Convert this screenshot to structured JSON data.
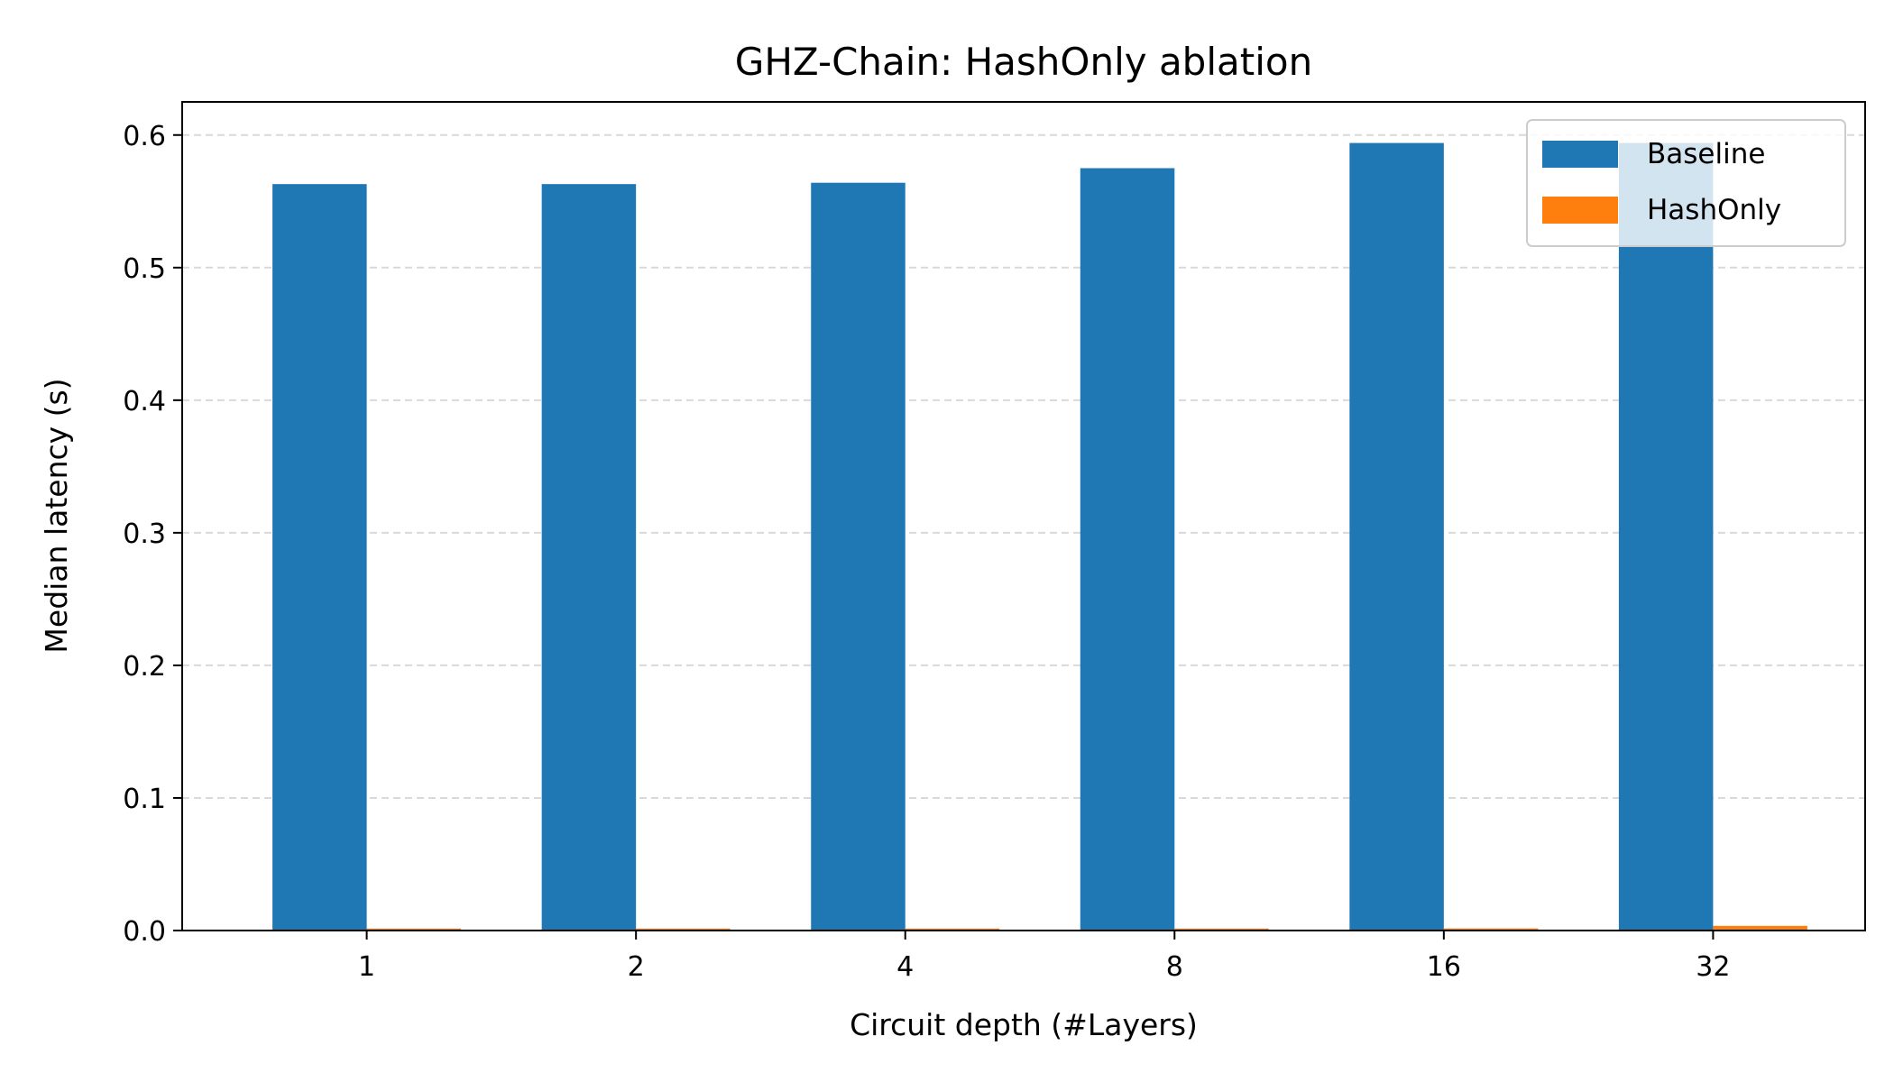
{
  "chart_data": {
    "type": "bar",
    "title": "GHZ-Chain: HashOnly ablation",
    "xlabel": "Circuit depth (#Layers)",
    "ylabel": "Median latency (s)",
    "categories": [
      "1",
      "2",
      "4",
      "8",
      "16",
      "32"
    ],
    "series": [
      {
        "name": "Baseline",
        "color": "#1f77b4",
        "values": [
          0.563,
          0.563,
          0.564,
          0.575,
          0.594,
          0.594
        ]
      },
      {
        "name": "HashOnly",
        "color": "#ff7f0e",
        "values": [
          0.0015,
          0.0015,
          0.0015,
          0.0015,
          0.0016,
          0.0035
        ]
      }
    ],
    "ylim": [
      0,
      0.625
    ],
    "yticks": [
      "0.0",
      "0.1",
      "0.2",
      "0.3",
      "0.4",
      "0.5",
      "0.6"
    ],
    "grid": "horizontal dashed",
    "legend_position": "top-right"
  }
}
